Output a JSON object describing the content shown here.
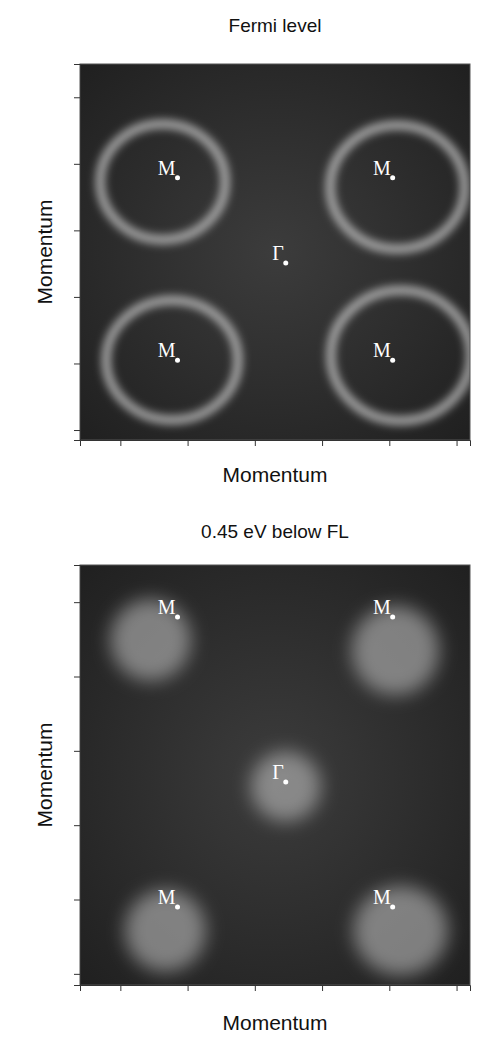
{
  "chart_data": [
    {
      "type": "intensity_map",
      "title": "Fermi level",
      "xlabel": "Momentum",
      "ylabel": "Momentum",
      "xlim": [
        -0.6,
        5.2
      ],
      "ylim": [
        -0.15,
        5.5
      ],
      "xticks": [
        0,
        1,
        2,
        3,
        4,
        5
      ],
      "yticks": [
        0,
        1,
        2,
        3,
        4,
        5
      ],
      "tick_labels": false,
      "points": {
        "labels": [
          "M",
          "M",
          "Γ",
          "M",
          "M"
        ],
        "x": [
          0.85,
          4.05,
          2.46,
          0.85,
          4.05
        ],
        "y": [
          3.79,
          3.79,
          2.51,
          1.05,
          1.05
        ]
      },
      "pockets": {
        "marker": "ring",
        "color": "#dcdcdc",
        "x": [
          0.63,
          4.12,
          0.77,
          4.17
        ],
        "y": [
          3.73,
          3.65,
          1.05,
          1.12
        ],
        "rx": [
          0.93,
          1.0,
          0.98,
          1.04
        ],
        "ry": [
          0.87,
          0.93,
          0.9,
          0.98
        ]
      }
    },
    {
      "type": "intensity_map",
      "title": "0.45 eV below FL",
      "xlabel": "Momentum",
      "ylabel": "Momentum",
      "xlim": [
        -0.6,
        5.2
      ],
      "ylim": [
        -0.15,
        5.5
      ],
      "xticks": [
        0,
        1,
        2,
        3,
        4,
        5
      ],
      "yticks": [
        0,
        1,
        2,
        3,
        4,
        5
      ],
      "tick_labels": false,
      "points": {
        "labels": [
          "M",
          "M",
          "Γ",
          "M",
          "M"
        ],
        "x": [
          0.85,
          4.05,
          2.46,
          0.85,
          4.05
        ],
        "y": [
          4.8,
          4.8,
          2.58,
          0.9,
          0.9
        ]
      },
      "pockets": {
        "marker": "spot",
        "color": "#c8c8c8",
        "x": [
          0.45,
          4.09,
          2.46,
          0.67,
          4.17
        ],
        "y": [
          4.49,
          4.35,
          2.52,
          0.58,
          0.58
        ],
        "rx": [
          0.6,
          0.65,
          0.52,
          0.6,
          0.7
        ],
        "ry": [
          0.55,
          0.6,
          0.47,
          0.55,
          0.6
        ]
      }
    }
  ]
}
